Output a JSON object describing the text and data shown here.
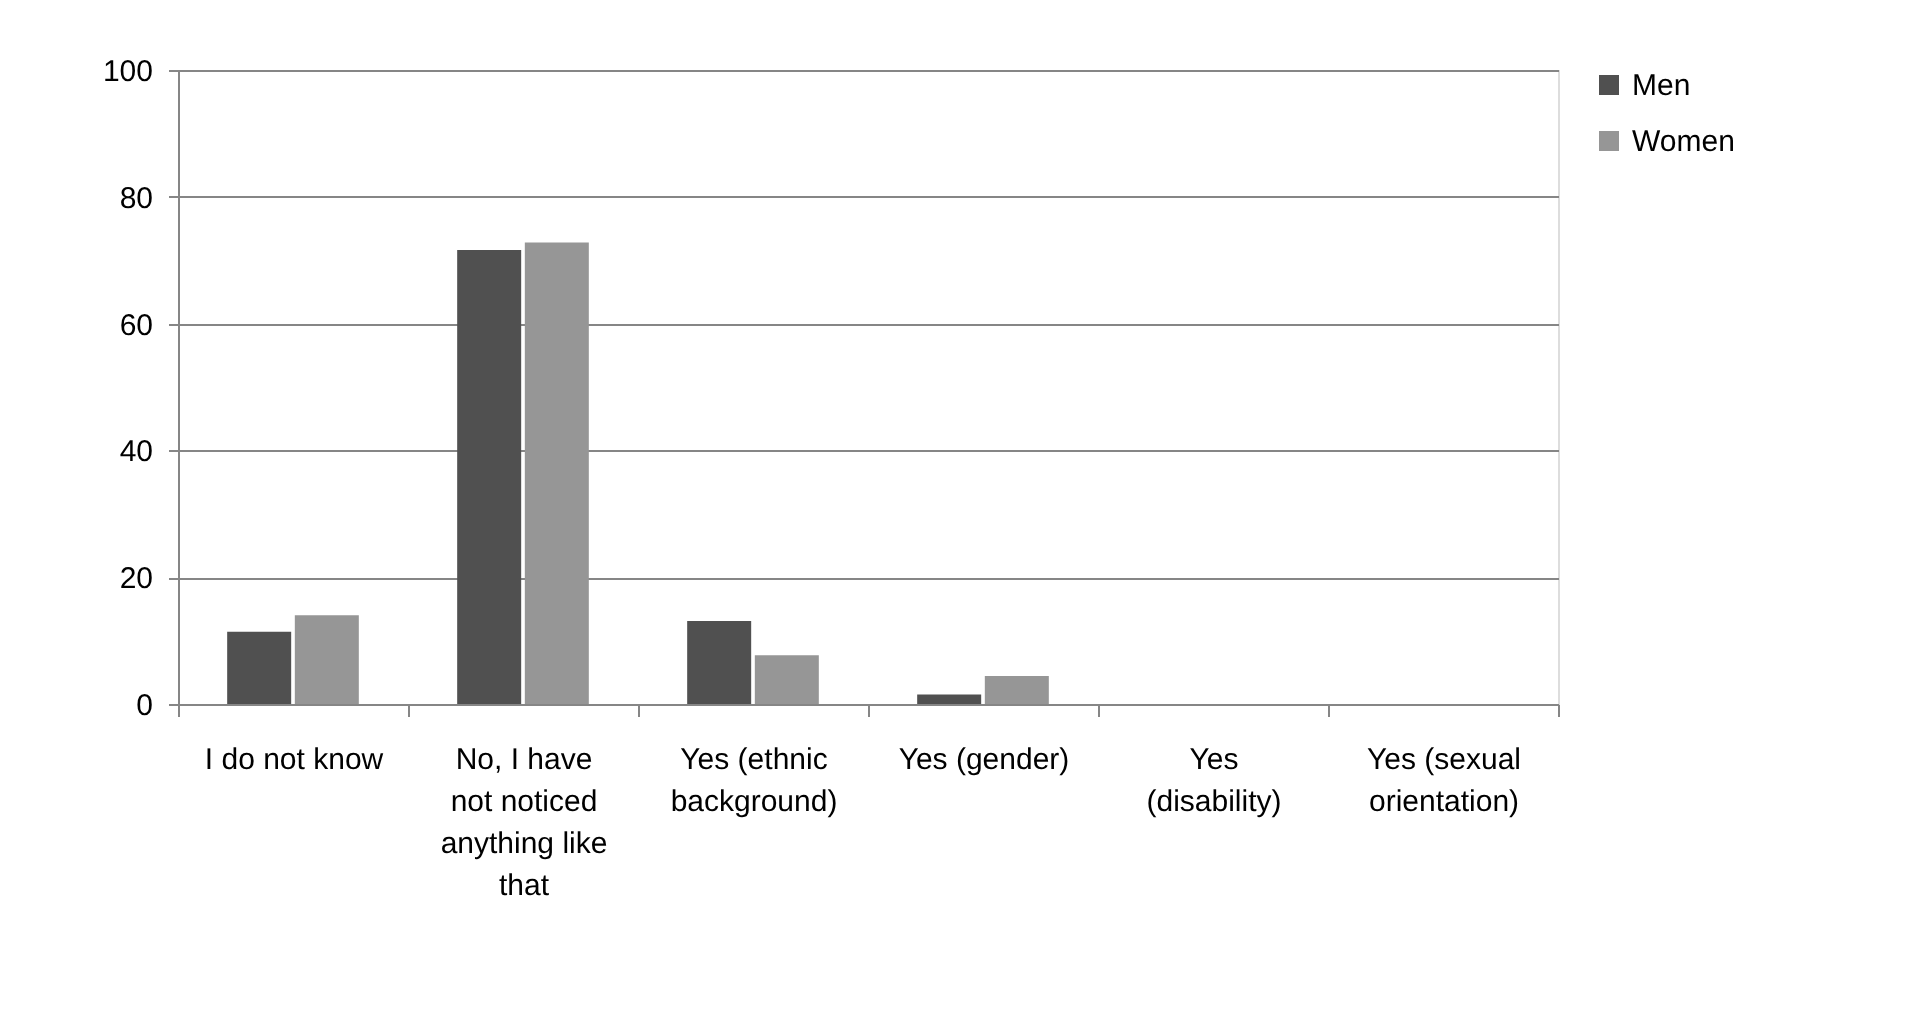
{
  "chart_data": {
    "type": "bar",
    "categories": [
      "I do not know",
      "No, I have not noticed anything like that",
      "Yes (ethnic background)",
      "Yes (gender)",
      "Yes (disability)",
      "Yes (sexual orientation)"
    ],
    "series": [
      {
        "name": "Men",
        "color": "#505050",
        "values": [
          11.4,
          71.6,
          13.1,
          1.5,
          0,
          0
        ]
      },
      {
        "name": "Women",
        "color": "#969696",
        "values": [
          14.0,
          72.8,
          7.7,
          4.4,
          0,
          0
        ]
      }
    ],
    "ylim": [
      0,
      100
    ],
    "yticks": [
      0,
      20,
      40,
      60,
      80,
      100
    ],
    "grid": "y",
    "legend": "right"
  }
}
